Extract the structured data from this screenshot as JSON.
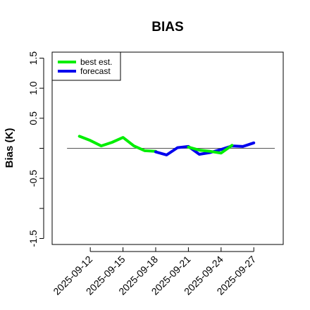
{
  "chart_data": {
    "type": "line",
    "title": "BIAS",
    "ylabel": "Bias (K)",
    "xlabel": "",
    "ylim": [
      -1.6,
      1.6
    ],
    "y_ticks": [
      -1.5,
      -1.0,
      -0.5,
      0.0,
      0.5,
      1.0,
      1.5
    ],
    "y_tick_labels": [
      "-1.5",
      "",
      "-0.5",
      "",
      "0.5",
      "1.0",
      "1.5"
    ],
    "x_tick_labels": [
      "2025-09-12",
      "2025-09-15",
      "2025-09-18",
      "2025-09-21",
      "2025-09-24",
      "2025-09-27"
    ],
    "x_tick_days": [
      12,
      15,
      18,
      21,
      24,
      27
    ],
    "highlighted_tick": "2025-09-18",
    "highlight_color": "#228b22",
    "xlim_days": [
      8.5,
      29.7
    ],
    "reference_line": 0.0,
    "grid": false,
    "legend_position": "top-left",
    "series": [
      {
        "name": "best est.",
        "color": "#00ee00",
        "x_days": [
          11,
          12,
          13,
          14,
          15,
          16,
          17,
          18
        ],
        "values": [
          0.2,
          0.13,
          0.04,
          0.1,
          0.18,
          0.04,
          -0.04,
          -0.05
        ]
      },
      {
        "name": "forecast",
        "color": "#0000ee",
        "x_days": [
          18,
          19,
          20,
          21,
          22,
          23,
          24,
          25,
          26,
          27
        ],
        "values": [
          -0.06,
          -0.11,
          0.01,
          0.03,
          -0.1,
          -0.07,
          -0.02,
          0.04,
          0.03,
          0.09
        ]
      },
      {
        "name": "",
        "color": "#00ee00",
        "x_days": [
          21,
          22,
          23,
          24,
          25
        ],
        "values": [
          0.02,
          -0.03,
          -0.05,
          -0.08,
          0.05
        ]
      }
    ]
  }
}
